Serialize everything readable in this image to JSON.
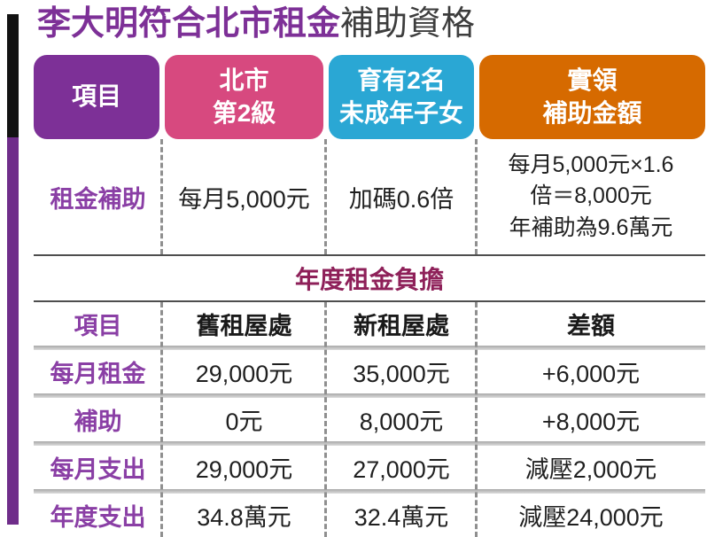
{
  "title": {
    "highlight": "李大明符合北市租金",
    "rest": "補助資格"
  },
  "colors": {
    "accent_black": "#121212",
    "accent_purple": "#6f2d8a",
    "title_highlight": "#7d3097",
    "title_rest": "#3d3d3d",
    "row_label": "#8a3fa5",
    "section_title": "#8e2059",
    "header_item": "#7d3097",
    "header_level": "#d7497f",
    "header_children": "#2aa7d4",
    "header_amount": "#d66a00"
  },
  "eligibility": {
    "headers": [
      {
        "label": "項目",
        "color": "#7d3097"
      },
      {
        "label": "北市\n第2級",
        "color": "#d7497f"
      },
      {
        "label": "育有2名\n未成年子女",
        "color": "#2aa7d4"
      },
      {
        "label": "實領\n補助金額",
        "color": "#d66a00"
      }
    ],
    "row": {
      "label": "租金補助",
      "monthly": "每月5,000元",
      "bonus": "加碼0.6倍",
      "detail": "每月5,000元×1.6\n倍＝8,000元\n年補助為9.6萬元"
    }
  },
  "burden": {
    "title": "年度租金負擔",
    "headers": [
      "項目",
      "舊租屋處",
      "新租屋處",
      "差額"
    ],
    "rows": [
      {
        "label": "每月租金",
        "old": "29,000元",
        "new": "35,000元",
        "diff": "+6,000元"
      },
      {
        "label": "補助",
        "old": "0元",
        "new": "8,000元",
        "diff": "+8,000元"
      },
      {
        "label": "每月支出",
        "old": "29,000元",
        "new": "27,000元",
        "diff": "減壓2,000元"
      },
      {
        "label": "年度支出",
        "old": "34.8萬元",
        "new": "32.4萬元",
        "diff": "減壓24,000元"
      }
    ]
  },
  "chart_data": [
    {
      "type": "table",
      "title": "李大明符合北市租金補助資格",
      "columns": [
        "項目",
        "北市第2級",
        "育有2名未成年子女",
        "實領補助金額"
      ],
      "rows": [
        [
          "租金補助",
          "每月5,000元",
          "加碼0.6倍",
          "每月5,000元×1.6倍＝8,000元 年補助為9.6萬元"
        ]
      ]
    },
    {
      "type": "table",
      "title": "年度租金負擔",
      "columns": [
        "項目",
        "舊租屋處",
        "新租屋處",
        "差額"
      ],
      "rows": [
        [
          "每月租金",
          "29,000元",
          "35,000元",
          "+6,000元"
        ],
        [
          "補助",
          "0元",
          "8,000元",
          "+8,000元"
        ],
        [
          "每月支出",
          "29,000元",
          "27,000元",
          "減壓2,000元"
        ],
        [
          "年度支出",
          "34.8萬元",
          "32.4萬元",
          "減壓24,000元"
        ]
      ]
    }
  ]
}
